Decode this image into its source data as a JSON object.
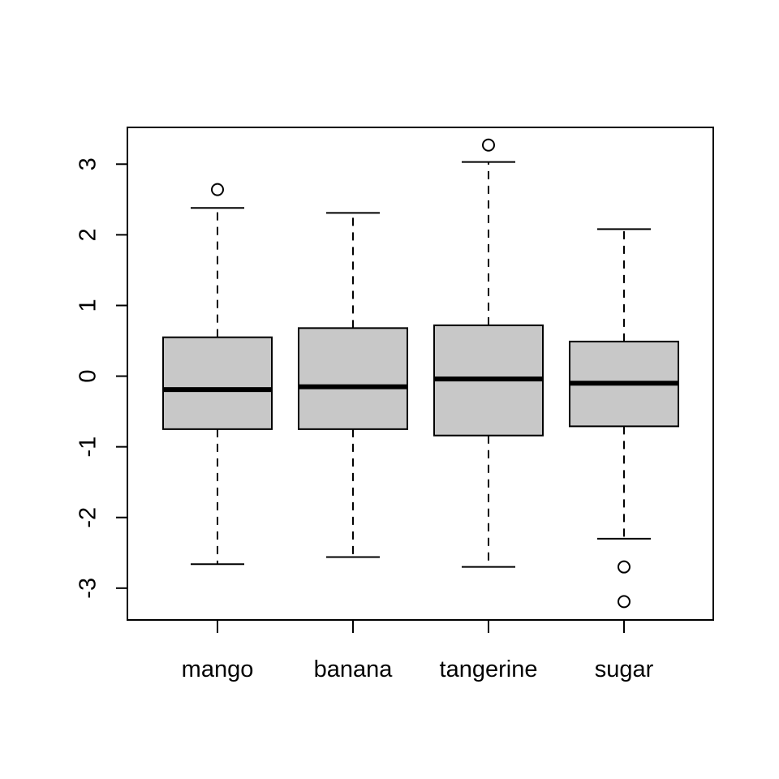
{
  "chart_data": {
    "type": "boxplot",
    "title": "",
    "xlabel": "",
    "ylabel": "",
    "ylim": [
      -3.45,
      3.52
    ],
    "yticks": [
      -3,
      -2,
      -1,
      0,
      1,
      2,
      3
    ],
    "ytick_labels": [
      "-3",
      "-2",
      "-1",
      "0",
      "1",
      "2",
      "3"
    ],
    "categories": [
      "mango",
      "banana",
      "tangerine",
      "sugar"
    ],
    "box_color": "#c8c8c8",
    "line_color": "#000000",
    "series": [
      {
        "category": "mango",
        "whisker_low": -2.66,
        "q1": -0.75,
        "median": -0.19,
        "q3": 0.55,
        "whisker_high": 2.38,
        "outliers": [
          2.64
        ]
      },
      {
        "category": "banana",
        "whisker_low": -2.56,
        "q1": -0.75,
        "median": -0.15,
        "q3": 0.68,
        "whisker_high": 2.31,
        "outliers": []
      },
      {
        "category": "tangerine",
        "whisker_low": -2.7,
        "q1": -0.84,
        "median": -0.04,
        "q3": 0.72,
        "whisker_high": 3.03,
        "outliers": [
          3.27
        ]
      },
      {
        "category": "sugar",
        "whisker_low": -2.3,
        "q1": -0.71,
        "median": -0.1,
        "q3": 0.49,
        "whisker_high": 2.08,
        "outliers": [
          -2.7,
          -3.19
        ]
      }
    ]
  }
}
